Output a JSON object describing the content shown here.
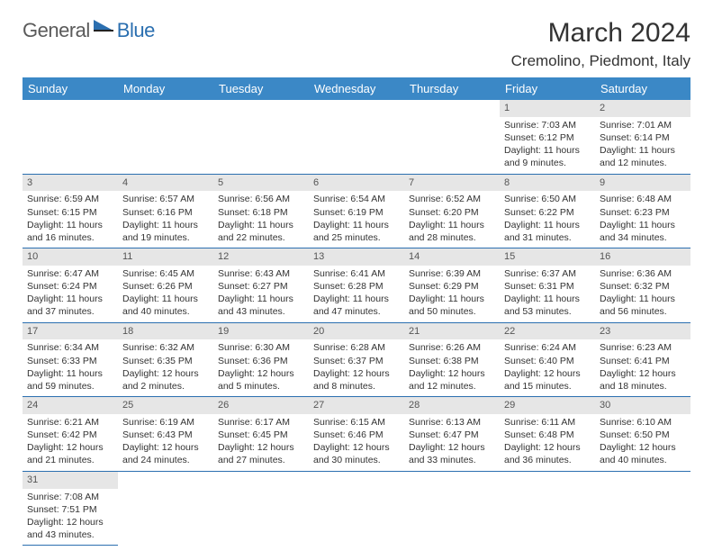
{
  "logo": {
    "part1": "General",
    "part2": "Blue"
  },
  "title": "March 2024",
  "location": "Cremolino, Piedmont, Italy",
  "colors": {
    "headerBg": "#3b88c6",
    "rowBorder": "#2b6fb0",
    "dayNumBg": "#e6e6e6"
  },
  "weekdays": [
    "Sunday",
    "Monday",
    "Tuesday",
    "Wednesday",
    "Thursday",
    "Friday",
    "Saturday"
  ],
  "startOffset": 5,
  "days": [
    {
      "n": "1",
      "sr": "Sunrise: 7:03 AM",
      "ss": "Sunset: 6:12 PM",
      "dl": "Daylight: 11 hours and 9 minutes."
    },
    {
      "n": "2",
      "sr": "Sunrise: 7:01 AM",
      "ss": "Sunset: 6:14 PM",
      "dl": "Daylight: 11 hours and 12 minutes."
    },
    {
      "n": "3",
      "sr": "Sunrise: 6:59 AM",
      "ss": "Sunset: 6:15 PM",
      "dl": "Daylight: 11 hours and 16 minutes."
    },
    {
      "n": "4",
      "sr": "Sunrise: 6:57 AM",
      "ss": "Sunset: 6:16 PM",
      "dl": "Daylight: 11 hours and 19 minutes."
    },
    {
      "n": "5",
      "sr": "Sunrise: 6:56 AM",
      "ss": "Sunset: 6:18 PM",
      "dl": "Daylight: 11 hours and 22 minutes."
    },
    {
      "n": "6",
      "sr": "Sunrise: 6:54 AM",
      "ss": "Sunset: 6:19 PM",
      "dl": "Daylight: 11 hours and 25 minutes."
    },
    {
      "n": "7",
      "sr": "Sunrise: 6:52 AM",
      "ss": "Sunset: 6:20 PM",
      "dl": "Daylight: 11 hours and 28 minutes."
    },
    {
      "n": "8",
      "sr": "Sunrise: 6:50 AM",
      "ss": "Sunset: 6:22 PM",
      "dl": "Daylight: 11 hours and 31 minutes."
    },
    {
      "n": "9",
      "sr": "Sunrise: 6:48 AM",
      "ss": "Sunset: 6:23 PM",
      "dl": "Daylight: 11 hours and 34 minutes."
    },
    {
      "n": "10",
      "sr": "Sunrise: 6:47 AM",
      "ss": "Sunset: 6:24 PM",
      "dl": "Daylight: 11 hours and 37 minutes."
    },
    {
      "n": "11",
      "sr": "Sunrise: 6:45 AM",
      "ss": "Sunset: 6:26 PM",
      "dl": "Daylight: 11 hours and 40 minutes."
    },
    {
      "n": "12",
      "sr": "Sunrise: 6:43 AM",
      "ss": "Sunset: 6:27 PM",
      "dl": "Daylight: 11 hours and 43 minutes."
    },
    {
      "n": "13",
      "sr": "Sunrise: 6:41 AM",
      "ss": "Sunset: 6:28 PM",
      "dl": "Daylight: 11 hours and 47 minutes."
    },
    {
      "n": "14",
      "sr": "Sunrise: 6:39 AM",
      "ss": "Sunset: 6:29 PM",
      "dl": "Daylight: 11 hours and 50 minutes."
    },
    {
      "n": "15",
      "sr": "Sunrise: 6:37 AM",
      "ss": "Sunset: 6:31 PM",
      "dl": "Daylight: 11 hours and 53 minutes."
    },
    {
      "n": "16",
      "sr": "Sunrise: 6:36 AM",
      "ss": "Sunset: 6:32 PM",
      "dl": "Daylight: 11 hours and 56 minutes."
    },
    {
      "n": "17",
      "sr": "Sunrise: 6:34 AM",
      "ss": "Sunset: 6:33 PM",
      "dl": "Daylight: 11 hours and 59 minutes."
    },
    {
      "n": "18",
      "sr": "Sunrise: 6:32 AM",
      "ss": "Sunset: 6:35 PM",
      "dl": "Daylight: 12 hours and 2 minutes."
    },
    {
      "n": "19",
      "sr": "Sunrise: 6:30 AM",
      "ss": "Sunset: 6:36 PM",
      "dl": "Daylight: 12 hours and 5 minutes."
    },
    {
      "n": "20",
      "sr": "Sunrise: 6:28 AM",
      "ss": "Sunset: 6:37 PM",
      "dl": "Daylight: 12 hours and 8 minutes."
    },
    {
      "n": "21",
      "sr": "Sunrise: 6:26 AM",
      "ss": "Sunset: 6:38 PM",
      "dl": "Daylight: 12 hours and 12 minutes."
    },
    {
      "n": "22",
      "sr": "Sunrise: 6:24 AM",
      "ss": "Sunset: 6:40 PM",
      "dl": "Daylight: 12 hours and 15 minutes."
    },
    {
      "n": "23",
      "sr": "Sunrise: 6:23 AM",
      "ss": "Sunset: 6:41 PM",
      "dl": "Daylight: 12 hours and 18 minutes."
    },
    {
      "n": "24",
      "sr": "Sunrise: 6:21 AM",
      "ss": "Sunset: 6:42 PM",
      "dl": "Daylight: 12 hours and 21 minutes."
    },
    {
      "n": "25",
      "sr": "Sunrise: 6:19 AM",
      "ss": "Sunset: 6:43 PM",
      "dl": "Daylight: 12 hours and 24 minutes."
    },
    {
      "n": "26",
      "sr": "Sunrise: 6:17 AM",
      "ss": "Sunset: 6:45 PM",
      "dl": "Daylight: 12 hours and 27 minutes."
    },
    {
      "n": "27",
      "sr": "Sunrise: 6:15 AM",
      "ss": "Sunset: 6:46 PM",
      "dl": "Daylight: 12 hours and 30 minutes."
    },
    {
      "n": "28",
      "sr": "Sunrise: 6:13 AM",
      "ss": "Sunset: 6:47 PM",
      "dl": "Daylight: 12 hours and 33 minutes."
    },
    {
      "n": "29",
      "sr": "Sunrise: 6:11 AM",
      "ss": "Sunset: 6:48 PM",
      "dl": "Daylight: 12 hours and 36 minutes."
    },
    {
      "n": "30",
      "sr": "Sunrise: 6:10 AM",
      "ss": "Sunset: 6:50 PM",
      "dl": "Daylight: 12 hours and 40 minutes."
    },
    {
      "n": "31",
      "sr": "Sunrise: 7:08 AM",
      "ss": "Sunset: 7:51 PM",
      "dl": "Daylight: 12 hours and 43 minutes."
    }
  ]
}
